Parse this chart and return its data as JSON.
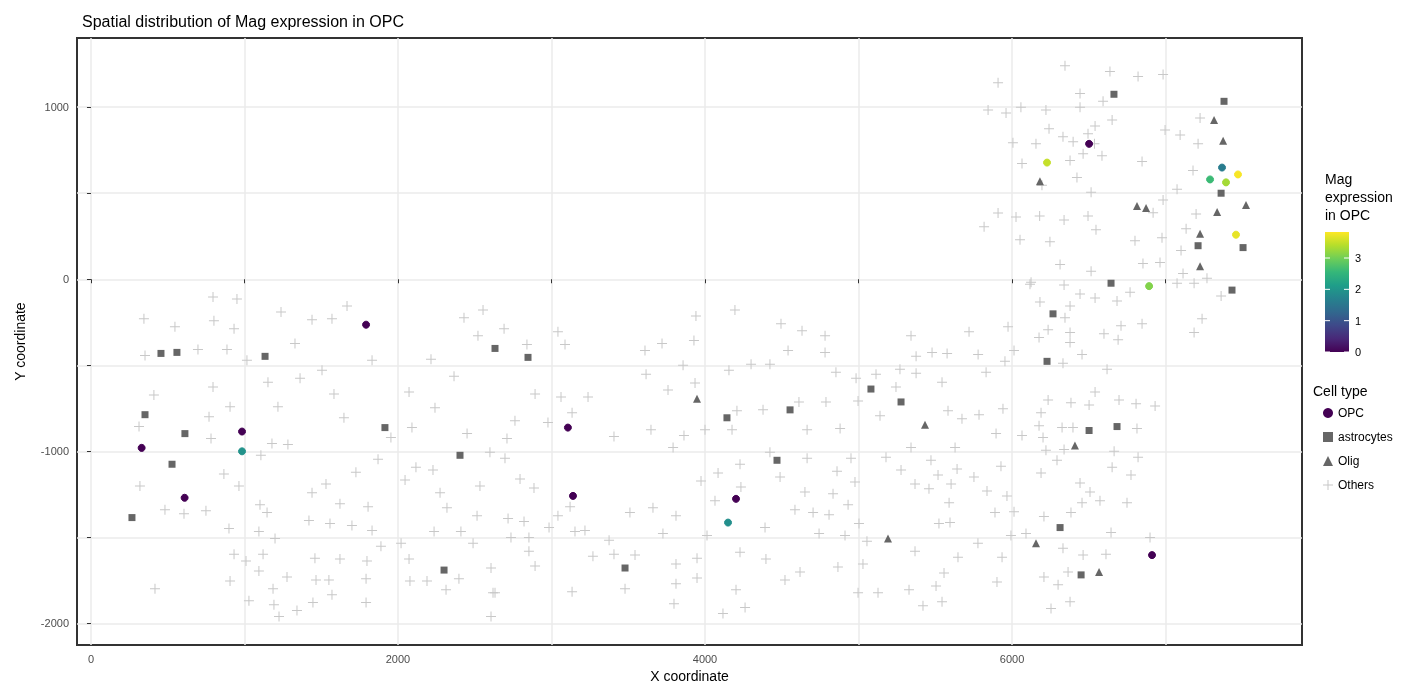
{
  "chart_data": {
    "type": "scatter",
    "title": "Spatial distribution of Mag expression in OPC",
    "xlabel": "X coordinate",
    "ylabel": "Y coordinate",
    "clabel": "Mag expression in OPC",
    "legend_title": "Cell type",
    "xlim": [
      -91,
      7889
    ],
    "xticks": [
      0,
      {
        "value": 1000,
        "label": null
      },
      2000,
      {
        "value": 3000,
        "label": null
      },
      4000,
      {
        "value": 5000,
        "label": null
      },
      6000,
      {
        "value": 7000,
        "label": null
      }
    ],
    "ylim": [
      -2126,
      1402
    ],
    "yticks": [
      -2000,
      {
        "value": -1500,
        "label": null
      },
      -1000,
      {
        "value": -500,
        "label": null
      },
      0,
      {
        "value": 500,
        "label": null
      },
      1000
    ],
    "clim": [
      0,
      3.83
    ],
    "cticks": [
      0,
      1,
      2,
      3
    ],
    "grid": true,
    "legend": "right",
    "series": [
      {
        "name": "OPC",
        "marker": "circle",
        "colors": [
          "#440154",
          "#440154",
          "#440154",
          "#22938b",
          "#440154",
          "#440154",
          "#440154",
          "#440154",
          "#238f8c",
          "#440154",
          "#82d24b",
          "#440154",
          "#c5e02a",
          "#297c8e",
          "#3bba75",
          "#a4da36",
          "#f8e625",
          "#e7e427"
        ],
        "x": [
          330,
          610,
          984,
          984,
          1792,
          3107,
          3140,
          4202,
          4150,
          6912,
          6893,
          6502,
          6228,
          7368,
          7290,
          7394,
          7472,
          7459
        ],
        "values": [
          -980,
          -1270,
          -885,
          -1000,
          -264,
          -862,
          -1259,
          -1276,
          -1414,
          -1603,
          -40,
          787,
          678,
          649,
          580,
          563,
          609,
          259
        ],
        "cvalues": [
          0,
          0,
          0,
          1.95,
          0,
          0,
          0,
          0,
          1.9,
          0,
          3.1,
          0,
          3.5,
          1.6,
          2.6,
          3.3,
          3.8,
          3.7
        ]
      },
      {
        "name": "astrocytes",
        "color": "#666666",
        "marker": "square",
        "x": [
          456,
          560,
          1134,
          352,
          612,
          528,
          267,
          1915,
          2404,
          2300,
          2632,
          2847,
          3479,
          4143,
          4554,
          4469,
          5081,
          5277,
          6645,
          6267,
          6228,
          6502,
          6684,
          6313,
          6450,
          7433,
          6664,
          7381,
          7362,
          7212,
          7505
        ],
        "values": [
          -431,
          -425,
          -448,
          -787,
          -897,
          -1075,
          -1385,
          -862,
          -1023,
          -1690,
          -402,
          -454,
          -1678,
          -805,
          -759,
          -1052,
          -638,
          -713,
          -23,
          -201,
          -477,
          -879,
          -856,
          -1443,
          -1718,
          -63,
          1075,
          1034,
          500,
          195,
          184
        ]
      },
      {
        "name": "Olig",
        "color": "#666666",
        "marker": "triangle",
        "x": [
          3948,
          5192,
          5433,
          6410,
          6156,
          6567,
          7316,
          7375,
          6182,
          6814,
          6873,
          7336,
          7524,
          7225,
          7225
        ],
        "values": [
          -695,
          -1506,
          -845,
          -966,
          -1534,
          -1701,
          925,
          805,
          569,
          425,
          414,
          391,
          431,
          264,
          75
        ]
      },
      {
        "name": "Others",
        "color": "#c8c8c8",
        "marker": "cross",
        "x": [
          795,
          951,
          345,
          547,
          801,
          932,
          1238,
          1440,
          1668,
          1570,
          352,
          697,
          886,
          1016,
          1329,
          1831,
          410,
          795,
          906,
          1153,
          1362,
          1583,
          1505,
          313,
          769,
          782,
          1218,
          1648,
          1179,
          1283,
          1954,
          1107,
          866,
          964,
          319,
          482,
          749,
          606,
          899,
          1101,
          1147,
          1440,
          1622,
          1805,
          1531,
          1726,
          1870,
          1420,
          1557,
          1700,
          1831,
          1094,
          1199,
          932,
          1010,
          1121,
          1094,
          1277,
          1459,
          1622,
          1798,
          1889,
          906,
          1186,
          1466,
          1550,
          1792,
          1570,
          1029,
          1192,
          1225,
          1342,
          1446,
          1792,
          417,
          2554,
          2430,
          2521,
          2215,
          2365,
          2072,
          2241,
          2091,
          2450,
          2599,
          2117,
          2228,
          2274,
          2534,
          2046,
          2319,
          2515,
          2235,
          2410,
          2020,
          2489,
          2072,
          2078,
          2189,
          2313,
          2397,
          2606,
          2619,
          2606,
          2691,
          2840,
          3042,
          3088,
          3609,
          3720,
          3928,
          3941,
          4195,
          4495,
          4632,
          4782,
          4541,
          4782,
          4300,
          4423,
          4156,
          3857,
          3616,
          3759,
          3935,
          4853,
          4984,
          5114,
          5270,
          5244,
          4997,
          5140,
          2893,
          3062,
          3238,
          3134,
          2977,
          2762,
          2710,
          3407,
          3648,
          3863,
          3792,
          4000,
          4208,
          4378,
          4612,
          4788,
          4665,
          4880,
          4176,
          4423,
          4665,
          4951,
          5179,
          5277,
          4860,
          4977,
          4489,
          4228,
          4085,
          4234,
          3974,
          4065,
          4651,
          4834,
          4932,
          4586,
          4704,
          4808,
          4391,
          4743,
          4912,
          5003,
          5055,
          3121,
          3042,
          2984,
          3153,
          3218,
          3511,
          3661,
          3811,
          3726,
          3375,
          3270,
          3407,
          3544,
          3811,
          3948,
          3948,
          3811,
          3798,
          3479,
          3134,
          4228,
          4397,
          4521,
          4619,
          4202,
          4261,
          4117,
          4866,
          5029,
          4997,
          5127,
          4013,
          2736,
          2853,
          2893,
          2632,
          2853,
          2821,
          2717,
          2886,
          2795,
          2697,
          6117,
          6339,
          6182,
          6378,
          6443,
          6541,
          6684,
          6769,
          6345,
          6235,
          6378,
          6176,
          6378,
          6599,
          6710,
          6691,
          6847,
          6456,
          5974,
          6013,
          5954,
          6332,
          6619,
          6541,
          6235,
          6384,
          6502,
          6697,
          6808,
          6932,
          6189,
          6176,
          6326,
          6397,
          6814,
          6202,
          6065,
          5896,
          5941,
          6221,
          6339,
          6665,
          6821,
          6293,
          6189,
          6652,
          6775,
          6443,
          6508,
          6456,
          6573,
          6749,
          6384,
          6208,
          6013,
          5967,
          6091,
          5993,
          6645,
          6899,
          6332,
          6463,
          6612,
          6365,
          6208,
          6300,
          6378,
          6254,
          5935,
          5902,
          5778,
          5648,
          5557,
          5505,
          5329,
          5420,
          5544,
          5368,
          5524,
          5596,
          5889,
          5590,
          5837,
          5459,
          5368,
          5603,
          5518,
          5752,
          5642,
          5472,
          5928,
          5629,
          5342,
          5674,
          5785,
          5583,
          5831,
          5544,
          5375,
          5375,
          5479,
          5577,
          5779,
          5342,
          5720,
          7075,
          7186,
          7362,
          7238,
          7186,
          5909,
          6345,
          6638,
          6821,
          6443,
          6593,
          5844,
          5961,
          6058,
          6221,
          6443,
          6652,
          6541,
          6241,
          6332,
          6495,
          6006,
          6156,
          6398,
          6537,
          6463,
          6586,
          6378,
          6065,
          6847,
          6423,
          6195,
          6515,
          5909,
          5818,
          6026,
          6180,
          6339,
          6495,
          6547,
          6052,
          6247,
          6801,
          6919,
          6977,
          6984,
          6997,
          7095,
          7212,
          7225,
          7179,
          7075,
          7199,
          7134,
          7101,
          6964,
          6853,
          6515,
          6313,
          7114,
          7270,
          6124,
          6984
        ],
        "values": [
          -103,
          -115,
          -230,
          -276,
          -241,
          -287,
          -190,
          -236,
          -155,
          -230,
          -443,
          -408,
          -408,
          -471,
          -374,
          -471,
          -672,
          -626,
          -741,
          -598,
          -575,
          -667,
          -529,
          -856,
          -799,
          -925,
          -741,
          -805,
          -954,
          -960,
          -920,
          -1023,
          -1132,
          -1201,
          -1201,
          -1339,
          -1345,
          -1362,
          -1448,
          -1310,
          -1356,
          -1241,
          -1305,
          -1322,
          -1190,
          -1121,
          -1046,
          -1402,
          -1420,
          -1431,
          -1460,
          -1466,
          -1506,
          -1598,
          -1638,
          -1598,
          -1695,
          -1730,
          -1621,
          -1626,
          -1638,
          -1552,
          -1753,
          -1799,
          -1747,
          -1747,
          -1741,
          -1833,
          -1868,
          -1891,
          -1960,
          -1925,
          -1879,
          -1879,
          -1799,
          -178,
          -224,
          -328,
          -465,
          -563,
          -655,
          -747,
          -862,
          -897,
          -1006,
          -1092,
          -1109,
          -1241,
          -1201,
          -1167,
          -1328,
          -1374,
          -1466,
          -1466,
          -1534,
          -1534,
          -1626,
          -1753,
          -1753,
          -1805,
          -1741,
          -1678,
          -1822,
          -1960,
          -287,
          -379,
          -305,
          -379,
          -414,
          -374,
          -356,
          -213,
          -178,
          -259,
          -299,
          -328,
          -414,
          -425,
          -494,
          -494,
          -529,
          -500,
          -552,
          -644,
          -603,
          -540,
          -575,
          -552,
          -523,
          -626,
          -707,
          -793,
          -667,
          -684,
          -684,
          -776,
          -833,
          -822,
          -925,
          -914,
          -874,
          -908,
          -977,
          -874,
          -764,
          -759,
          -713,
          -713,
          -874,
          -868,
          -874,
          -1006,
          -1040,
          -1040,
          -1034,
          -1109,
          -1115,
          -1178,
          -1149,
          -1075,
          -1126,
          -1207,
          -1172,
          -1287,
          -1236,
          -1247,
          -1310,
          -1339,
          -1356,
          -1368,
          -1443,
          -1477,
          -1489,
          -1420,
          -1523,
          -1322,
          -1374,
          -1443,
          -1466,
          -1460,
          -1356,
          -1328,
          -1374,
          -1477,
          -1517,
          -1609,
          -1598,
          -1603,
          -1655,
          -1621,
          -1736,
          -1770,
          -1885,
          -1799,
          -1816,
          -1586,
          -1626,
          -1747,
          -1701,
          -1805,
          -1908,
          -1943,
          -1672,
          -1655,
          -1822,
          -1822,
          -1489,
          -1500,
          -1580,
          -1667,
          -1822,
          -1500,
          -1408,
          -1391,
          -1213,
          -1161,
          -1040,
          -29,
          -34,
          -132,
          -155,
          -86,
          -109,
          -126,
          -75,
          -224,
          -293,
          -310,
          -339,
          -368,
          -316,
          -270,
          -351,
          -259,
          -437,
          -276,
          -414,
          -477,
          -488,
          -523,
          -655,
          -701,
          -718,
          -730,
          -701,
          -724,
          -736,
          -776,
          -851,
          -862,
          -862,
          -868,
          -920,
          -908,
          -897,
          -753,
          -994,
          -989,
          -1000,
          -1034,
          -1052,
          -1126,
          -1092,
          -1138,
          -1184,
          -1236,
          -1299,
          -1287,
          -1299,
          -1356,
          -1379,
          -1351,
          -1259,
          -1477,
          -1489,
          -1471,
          -1500,
          -1563,
          -1603,
          -1598,
          -1701,
          -1730,
          -1776,
          -1874,
          -1914,
          -1615,
          -1759,
          -1534,
          -1615,
          -1707,
          -1782,
          -1805,
          -1897,
          -1874,
          -1580,
          -1420,
          -1414,
          -1356,
          -1299,
          -1230,
          -1218,
          -1190,
          -1190,
          -1138,
          -1149,
          -1103,
          -1052,
          -1086,
          -977,
          -977,
          -810,
          -787,
          -764,
          -540,
          -598,
          -546,
          -448,
          -425,
          -431,
          -437,
          -328,
          -305,
          -23,
          -23,
          -98,
          -230,
          -310,
          1142,
          1241,
          1207,
          1178,
          1080,
          1034,
          983,
          966,
          1000,
          983,
          1000,
          925,
          891,
          874,
          828,
          845,
          793,
          787,
          799,
          787,
          730,
          718,
          690,
          672,
          684,
          592,
          546,
          506,
          385,
          305,
          362,
          368,
          345,
          368,
          287,
          230,
          218,
          224,
          387,
          241,
          460,
          868,
          839,
          787,
          937,
          632,
          523,
          379,
          293,
          167,
          98,
          92,
          46,
          86,
          34,
          6,
          -17,
          1190
        ]
      }
    ]
  }
}
